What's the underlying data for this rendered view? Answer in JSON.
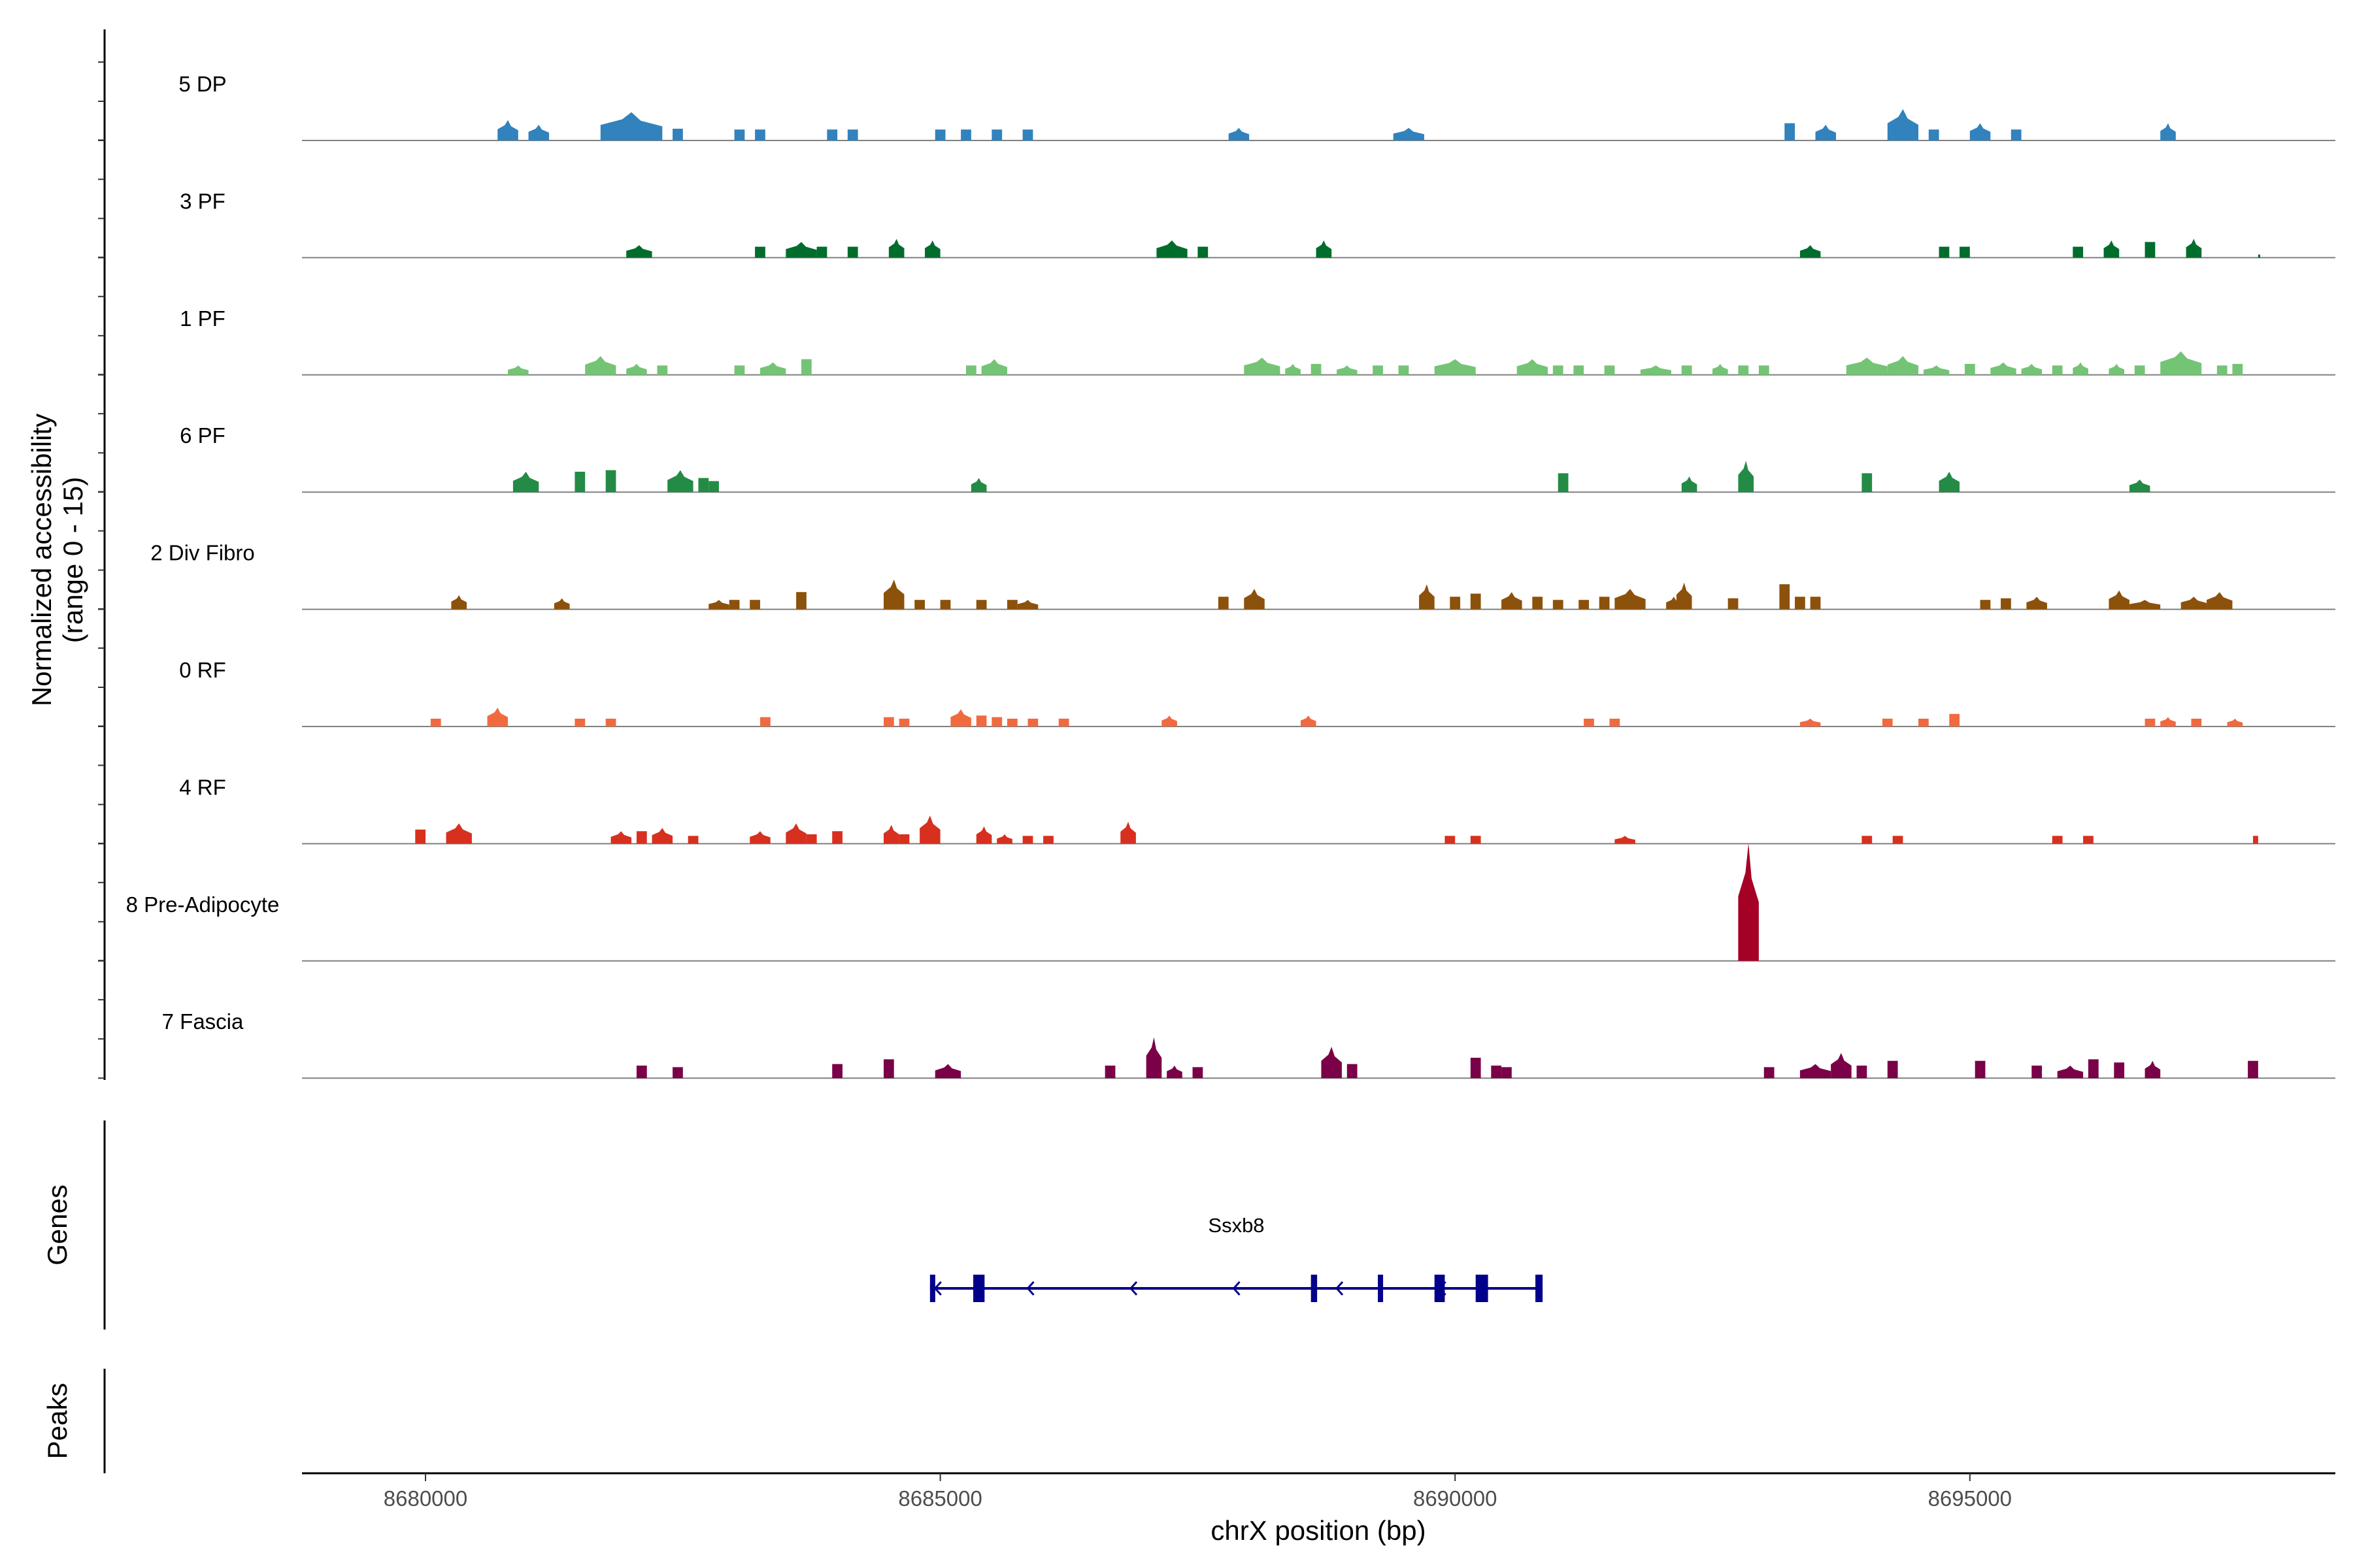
{
  "chart_data": {
    "type": "area",
    "title": "",
    "ylabel_line1": "Normalized accessibility",
    "ylabel_line2": "(range 0 - 15)",
    "ylim": [
      0,
      15
    ],
    "xlabel": "chrX position (bp)",
    "xlim": [
      8678800,
      8698550
    ],
    "xticks": [
      8680000,
      8685000,
      8690000,
      8695000
    ],
    "xtick_labels": [
      "8680000",
      "8685000",
      "8690000",
      "8695000"
    ],
    "tracks": [
      {
        "name": "5 DP",
        "color": "#3182bd",
        "peaks": [
          [
            8680700,
            8680900,
            2.6
          ],
          [
            8681000,
            8681200,
            2.0
          ],
          [
            8681700,
            8682300,
            3.6
          ],
          [
            8682400,
            8682500,
            1.5
          ],
          [
            8683000,
            8683100,
            1.4
          ],
          [
            8683200,
            8683300,
            1.4
          ],
          [
            8683900,
            8684000,
            1.4
          ],
          [
            8684100,
            8684200,
            1.4
          ],
          [
            8684950,
            8685050,
            1.4
          ],
          [
            8685200,
            8685300,
            1.4
          ],
          [
            8685500,
            8685600,
            1.4
          ],
          [
            8685800,
            8685900,
            1.4
          ],
          [
            8687800,
            8688000,
            1.6
          ],
          [
            8689400,
            8689700,
            1.6
          ],
          [
            8693200,
            8693300,
            2.2
          ],
          [
            8693500,
            8693700,
            2.0
          ],
          [
            8694200,
            8694500,
            4.0
          ],
          [
            8694600,
            8694700,
            1.4
          ],
          [
            8695000,
            8695200,
            2.2
          ],
          [
            8695400,
            8695500,
            1.4
          ],
          [
            8696850,
            8697000,
            2.2
          ]
        ]
      },
      {
        "name": "3 PF",
        "color": "#006d2c",
        "peaks": [
          [
            8681950,
            8682200,
            1.6
          ],
          [
            8683200,
            8683300,
            1.4
          ],
          [
            8683500,
            8683800,
            2.0
          ],
          [
            8683800,
            8683900,
            1.4
          ],
          [
            8684100,
            8684200,
            1.4
          ],
          [
            8684500,
            8684650,
            2.4
          ],
          [
            8684850,
            8685000,
            2.2
          ],
          [
            8687100,
            8687400,
            2.2
          ],
          [
            8687500,
            8687600,
            1.4
          ],
          [
            8688650,
            8688800,
            2.2
          ],
          [
            8693350,
            8693550,
            1.6
          ],
          [
            8694700,
            8694800,
            1.4
          ],
          [
            8694900,
            8695000,
            1.4
          ],
          [
            8696000,
            8696100,
            1.4
          ],
          [
            8696300,
            8696450,
            2.2
          ],
          [
            8696700,
            8696800,
            2.0
          ],
          [
            8697100,
            8697250,
            2.4
          ],
          [
            8697800,
            8697820,
            0.4
          ]
        ]
      },
      {
        "name": "1 PF",
        "color": "#74c476",
        "peaks": [
          [
            8680800,
            8681000,
            1.2
          ],
          [
            8681550,
            8681850,
            2.4
          ],
          [
            8681950,
            8682150,
            1.4
          ],
          [
            8682250,
            8682350,
            1.2
          ],
          [
            8683000,
            8683100,
            1.2
          ],
          [
            8683250,
            8683500,
            1.6
          ],
          [
            8683650,
            8683750,
            2.0
          ],
          [
            8685250,
            8685350,
            1.2
          ],
          [
            8685400,
            8685650,
            2.0
          ],
          [
            8687950,
            8688300,
            2.2
          ],
          [
            8688350,
            8688500,
            1.4
          ],
          [
            8688600,
            8688700,
            1.4
          ],
          [
            8688850,
            8689050,
            1.2
          ],
          [
            8689200,
            8689300,
            1.2
          ],
          [
            8689450,
            8689550,
            1.2
          ],
          [
            8689800,
            8690200,
            2.0
          ],
          [
            8690600,
            8690900,
            2.0
          ],
          [
            8690950,
            8691050,
            1.2
          ],
          [
            8691150,
            8691250,
            1.2
          ],
          [
            8691450,
            8691550,
            1.2
          ],
          [
            8691800,
            8692100,
            1.2
          ],
          [
            8692200,
            8692300,
            1.2
          ],
          [
            8692500,
            8692650,
            1.4
          ],
          [
            8692750,
            8692850,
            1.2
          ],
          [
            8692950,
            8693050,
            1.2
          ],
          [
            8693800,
            8694200,
            2.2
          ],
          [
            8694200,
            8694500,
            2.4
          ],
          [
            8694550,
            8694800,
            1.2
          ],
          [
            8694950,
            8695050,
            1.4
          ],
          [
            8695200,
            8695450,
            1.6
          ],
          [
            8695500,
            8695700,
            1.4
          ],
          [
            8695800,
            8695900,
            1.2
          ],
          [
            8696000,
            8696150,
            1.6
          ],
          [
            8696350,
            8696500,
            1.4
          ],
          [
            8696600,
            8696700,
            1.2
          ],
          [
            8696850,
            8697250,
            3.0
          ],
          [
            8697400,
            8697500,
            1.2
          ],
          [
            8697550,
            8697650,
            1.4
          ]
        ]
      },
      {
        "name": "6 PF",
        "color": "#238b45",
        "peaks": [
          [
            8680850,
            8681100,
            2.6
          ],
          [
            8681450,
            8681550,
            2.6
          ],
          [
            8681750,
            8681850,
            2.8
          ],
          [
            8682350,
            8682600,
            2.8
          ],
          [
            8682650,
            8682750,
            1.8
          ],
          [
            8682750,
            8682850,
            1.4
          ],
          [
            8685300,
            8685450,
            1.8
          ],
          [
            8691000,
            8691100,
            2.4
          ],
          [
            8692200,
            8692350,
            2.0
          ],
          [
            8692750,
            8692900,
            4.0
          ],
          [
            8693950,
            8694050,
            2.4
          ],
          [
            8694700,
            8694900,
            2.6
          ],
          [
            8696550,
            8696750,
            1.6
          ]
        ]
      },
      {
        "name": "2 Div Fibro",
        "color": "#8c510a",
        "peaks": [
          [
            8680250,
            8680400,
            1.8
          ],
          [
            8681250,
            8681400,
            1.4
          ],
          [
            8682750,
            8682950,
            1.2
          ],
          [
            8682950,
            8683050,
            1.2
          ],
          [
            8683150,
            8683250,
            1.2
          ],
          [
            8683600,
            8683700,
            2.2
          ],
          [
            8684450,
            8684650,
            3.8
          ],
          [
            8684750,
            8684850,
            1.2
          ],
          [
            8685000,
            8685100,
            1.2
          ],
          [
            8685350,
            8685450,
            1.2
          ],
          [
            8685650,
            8685750,
            1.2
          ],
          [
            8685750,
            8685950,
            1.2
          ],
          [
            8687700,
            8687800,
            1.6
          ],
          [
            8687950,
            8688150,
            2.6
          ],
          [
            8689650,
            8689800,
            3.2
          ],
          [
            8689950,
            8690050,
            1.6
          ],
          [
            8690150,
            8690250,
            2.0
          ],
          [
            8690450,
            8690650,
            2.2
          ],
          [
            8690750,
            8690850,
            1.6
          ],
          [
            8690950,
            8691050,
            1.2
          ],
          [
            8691200,
            8691300,
            1.2
          ],
          [
            8691400,
            8691500,
            1.6
          ],
          [
            8691550,
            8691850,
            2.6
          ],
          [
            8692050,
            8692200,
            1.6
          ],
          [
            8692150,
            8692300,
            3.4
          ],
          [
            8692650,
            8692750,
            1.4
          ],
          [
            8693150,
            8693250,
            3.2
          ],
          [
            8693300,
            8693400,
            1.6
          ],
          [
            8693450,
            8693550,
            1.6
          ],
          [
            8695100,
            8695200,
            1.2
          ],
          [
            8695300,
            8695400,
            1.4
          ],
          [
            8695550,
            8695750,
            1.6
          ],
          [
            8696350,
            8696550,
            2.4
          ],
          [
            8696550,
            8696850,
            1.2
          ],
          [
            8697050,
            8697300,
            1.6
          ],
          [
            8697300,
            8697550,
            2.2
          ]
        ]
      },
      {
        "name": "0 RF",
        "color": "#f16a3f",
        "peaks": [
          [
            8680050,
            8680150,
            1.0
          ],
          [
            8680600,
            8680800,
            2.4
          ],
          [
            8681450,
            8681550,
            1.0
          ],
          [
            8681750,
            8681850,
            1.0
          ],
          [
            8683250,
            8683350,
            1.2
          ],
          [
            8684450,
            8684550,
            1.2
          ],
          [
            8684600,
            8684700,
            1.0
          ],
          [
            8685100,
            8685300,
            2.2
          ],
          [
            8685350,
            8685450,
            1.4
          ],
          [
            8685500,
            8685600,
            1.2
          ],
          [
            8685650,
            8685750,
            1.0
          ],
          [
            8685850,
            8685950,
            1.0
          ],
          [
            8686150,
            8686250,
            1.0
          ],
          [
            8687150,
            8687300,
            1.4
          ],
          [
            8688500,
            8688650,
            1.4
          ],
          [
            8691250,
            8691350,
            1.0
          ],
          [
            8691500,
            8691600,
            1.0
          ],
          [
            8693350,
            8693550,
            1.0
          ],
          [
            8694150,
            8694250,
            1.0
          ],
          [
            8694500,
            8694600,
            1.0
          ],
          [
            8694800,
            8694900,
            1.6
          ],
          [
            8696700,
            8696800,
            1.0
          ],
          [
            8696850,
            8697000,
            1.2
          ],
          [
            8697150,
            8697250,
            1.0
          ],
          [
            8697500,
            8697650,
            1.0
          ]
        ]
      },
      {
        "name": "4 RF",
        "color": "#d7301f",
        "peaks": [
          [
            8679900,
            8680000,
            1.8
          ],
          [
            8680200,
            8680450,
            2.6
          ],
          [
            8681800,
            8682000,
            1.6
          ],
          [
            8682050,
            8682150,
            1.6
          ],
          [
            8682200,
            8682400,
            2.0
          ],
          [
            8682550,
            8682650,
            1.0
          ],
          [
            8683150,
            8683350,
            1.6
          ],
          [
            8683500,
            8683700,
            2.6
          ],
          [
            8683700,
            8683800,
            1.2
          ],
          [
            8683950,
            8684050,
            1.6
          ],
          [
            8684450,
            8684600,
            2.4
          ],
          [
            8684600,
            8684700,
            1.2
          ],
          [
            8684800,
            8685000,
            3.6
          ],
          [
            8685350,
            8685500,
            2.2
          ],
          [
            8685550,
            8685700,
            1.2
          ],
          [
            8685800,
            8685900,
            1.0
          ],
          [
            8686000,
            8686100,
            1.0
          ],
          [
            8686750,
            8686900,
            2.8
          ],
          [
            8689900,
            8690000,
            1.0
          ],
          [
            8690150,
            8690250,
            1.0
          ],
          [
            8691550,
            8691750,
            1.0
          ],
          [
            8693950,
            8694050,
            1.0
          ],
          [
            8694250,
            8694350,
            1.0
          ],
          [
            8695800,
            8695900,
            1.0
          ],
          [
            8696100,
            8696200,
            1.0
          ],
          [
            8697750,
            8697800,
            1.0
          ]
        ]
      },
      {
        "name": "8 Pre-Adipocyte",
        "color": "#a50026",
        "peaks": [
          [
            8692750,
            8692950,
            15.0
          ]
        ]
      },
      {
        "name": "7 Fascia",
        "color": "#7a0148",
        "peaks": [
          [
            8682050,
            8682150,
            1.6
          ],
          [
            8682400,
            8682500,
            1.4
          ],
          [
            8683950,
            8684050,
            1.8
          ],
          [
            8684450,
            8684550,
            2.4
          ],
          [
            8684950,
            8685200,
            1.8
          ],
          [
            8686600,
            8686700,
            1.6
          ],
          [
            8687000,
            8687150,
            5.2
          ],
          [
            8687200,
            8687350,
            1.6
          ],
          [
            8687450,
            8687550,
            1.4
          ],
          [
            8688700,
            8688900,
            4.0
          ],
          [
            8688950,
            8689050,
            1.8
          ],
          [
            8690150,
            8690250,
            2.6
          ],
          [
            8690350,
            8690450,
            1.6
          ],
          [
            8690450,
            8690550,
            1.4
          ],
          [
            8693000,
            8693100,
            1.4
          ],
          [
            8693350,
            8693650,
            1.8
          ],
          [
            8693650,
            8693850,
            3.2
          ],
          [
            8693900,
            8694000,
            1.6
          ],
          [
            8694200,
            8694300,
            2.2
          ],
          [
            8695050,
            8695150,
            2.2
          ],
          [
            8695600,
            8695700,
            1.6
          ],
          [
            8695850,
            8696100,
            1.6
          ],
          [
            8696150,
            8696250,
            2.4
          ],
          [
            8696400,
            8696500,
            2.0
          ],
          [
            8696700,
            8696850,
            2.2
          ],
          [
            8697700,
            8697800,
            2.2
          ]
        ]
      }
    ],
    "genes_label": "Genes",
    "gene": {
      "name": "Ssxb8",
      "start": 8684900,
      "end": 8690850,
      "strand": "-",
      "exons": [
        [
          8684900,
          8684930
        ],
        [
          8685320,
          8685430
        ],
        [
          8688600,
          8688660
        ],
        [
          8689250,
          8689290
        ],
        [
          8689800,
          8689900
        ],
        [
          8690200,
          8690320
        ],
        [
          8690780,
          8690850
        ]
      ],
      "arrows": [
        8684950,
        8685850,
        8686850,
        8687850,
        8688850,
        8689850
      ]
    },
    "peaks_label": "Peaks",
    "peaks": []
  }
}
